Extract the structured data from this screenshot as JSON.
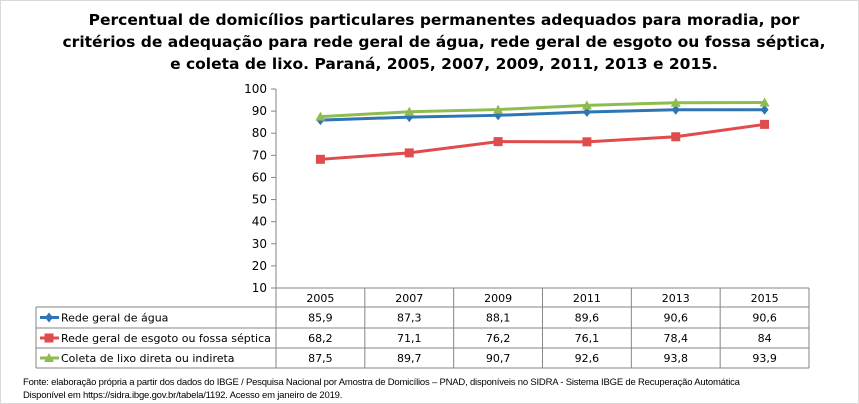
{
  "chart_data": {
    "type": "line",
    "title": "Percentual de domicílios particulares permanentes adequados para moradia, por critérios de adequação para rede geral de água, rede geral de esgoto ou fossa séptica, e coleta de lixo. Paraná, 2005, 2007, 2009, 2011, 2013 e 2015.",
    "categories": [
      "2005",
      "2007",
      "2009",
      "2011",
      "2013",
      "2015"
    ],
    "ylim": [
      10,
      100
    ],
    "yticks": [
      "100",
      "90",
      "80",
      "70",
      "60",
      "50",
      "40",
      "30",
      "20",
      "10"
    ],
    "grid": false,
    "legend": "data-table",
    "series": [
      {
        "name": "Rede geral de água",
        "values": [
          85.9,
          87.3,
          88.1,
          89.6,
          90.6,
          90.6
        ],
        "labels": [
          "85,9",
          "87,3",
          "88,1",
          "89,6",
          "90,6",
          "90,6"
        ],
        "color": "#2e75b6",
        "marker": "diamond"
      },
      {
        "name": "Rede geral de esgoto ou fossa séptica",
        "values": [
          68.2,
          71.1,
          76.2,
          76.1,
          78.4,
          84
        ],
        "labels": [
          "68,2",
          "71,1",
          "76,2",
          "76,1",
          "78,4",
          "84"
        ],
        "color": "#e04b4b",
        "marker": "square"
      },
      {
        "name": "Coleta de lixo direta ou indireta",
        "values": [
          87.5,
          89.7,
          90.7,
          92.6,
          93.8,
          93.9
        ],
        "labels": [
          "87,5",
          "89,7",
          "90,7",
          "92,6",
          "93,8",
          "93,9"
        ],
        "color": "#8fbc4f",
        "marker": "triangle"
      }
    ]
  },
  "source": {
    "line1": "Fonte: elaboração própria a partir dos dados do IBGE / Pesquisa Nacional por Amostra de Domicílios – PNAD, disponíveis no SIDRA - Sistema IBGE de Recuperação Automática",
    "line2": "Disponível em https://sidra.ibge.gov.br/tabela/1192. Acesso em janeiro de 2019."
  }
}
